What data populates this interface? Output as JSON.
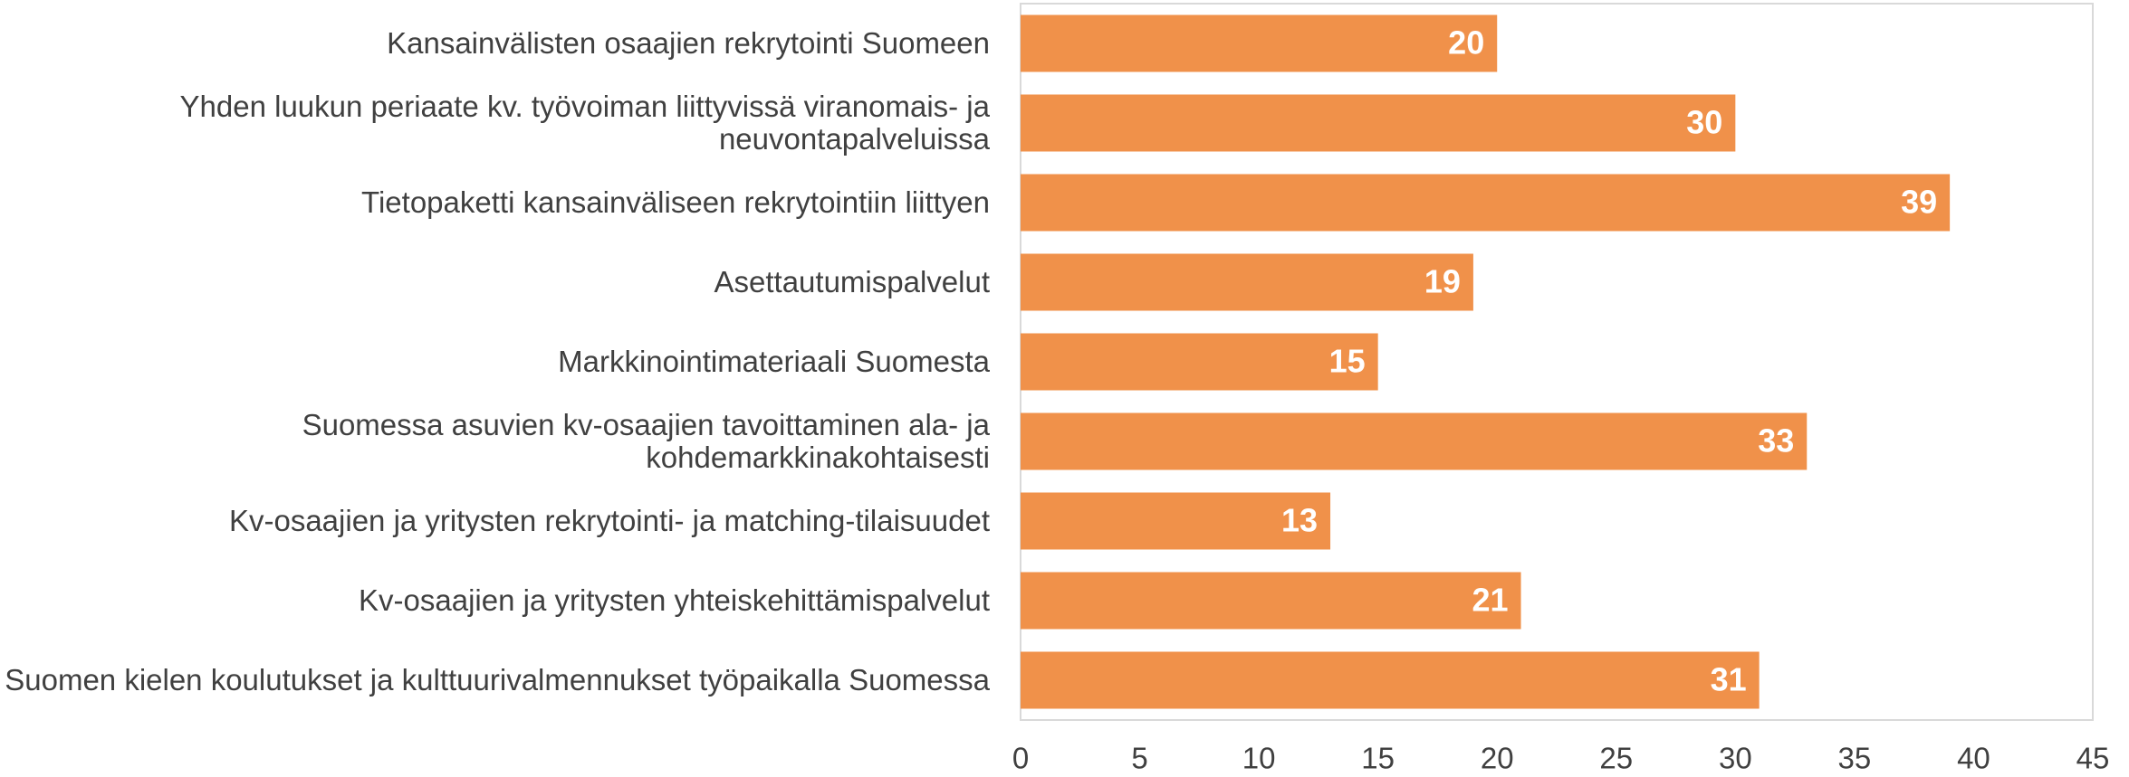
{
  "chart_data": {
    "type": "bar",
    "orientation": "horizontal",
    "categories": [
      "Kansainvälisten osaajien rekrytointi Suomeen",
      "Yhden luukun periaate kv. työvoiman liittyvissä viranomais- ja neuvontapalveluissa",
      "Tietopaketti kansainväliseen rekrytointiin liittyen",
      "Asettautumispalvelut",
      "Markkinointimateriaali Suomesta",
      "Suomessa asuvien kv-osaajien tavoittaminen ala- ja kohdemarkkinakohtaisesti",
      "Kv-osaajien ja yritysten rekrytointi- ja matching-tilaisuudet",
      "Kv-osaajien ja yritysten yhteiskehittämispalvelut",
      "Suomen kielen koulutukset ja kulttuurivalmennukset työpaikalla Suomessa"
    ],
    "values": [
      20,
      30,
      39,
      19,
      15,
      33,
      13,
      21,
      31
    ],
    "color": "#f0914a",
    "xlim": [
      0,
      45
    ],
    "xticks": [
      0,
      5,
      10,
      15,
      20,
      25,
      30,
      35,
      40,
      45
    ],
    "grid": false
  }
}
